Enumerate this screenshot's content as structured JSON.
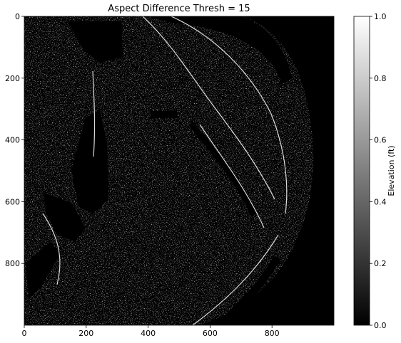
{
  "chart_data": {
    "type": "heatmap",
    "title": "Aspect Difference Thresh = 15",
    "xlabel": "",
    "ylabel": "",
    "x_range": [
      0,
      1000
    ],
    "y_range": [
      0,
      1000
    ],
    "y_inverted": true,
    "xticks": [
      0,
      200,
      400,
      600,
      800
    ],
    "yticks": [
      0,
      200,
      400,
      600,
      800
    ],
    "grid": false,
    "colormap": "gray",
    "colorbar": {
      "label": "Elevation (ft)",
      "range": [
        0.0,
        1.0
      ],
      "ticks": [
        0.0,
        0.2,
        0.4,
        0.6,
        0.8,
        1.0
      ],
      "tick_labels": [
        "0.0",
        "0.2",
        "0.4",
        "0.6",
        "0.8",
        "1.0"
      ]
    },
    "description_values": "binary mask (0 or 1) of a roughly circular textured region on black background"
  }
}
